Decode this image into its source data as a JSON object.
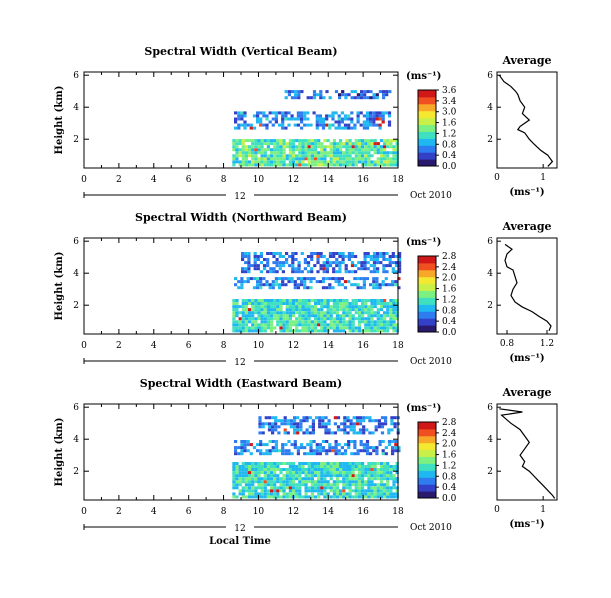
{
  "colors": {
    "colormap": [
      "#2a1a6e",
      "#3340c8",
      "#2d7df0",
      "#20b8f0",
      "#3ee0c0",
      "#7cf080",
      "#c8f048",
      "#f5e830",
      "#f8a828",
      "#f05020",
      "#d01818"
    ],
    "axis": "#000000",
    "background": "#ffffff"
  },
  "shared": {
    "date_label": "Oct 2010",
    "day_label": "12",
    "xlabel": "Local Time",
    "units_label": "(ms⁻¹)",
    "avg_title": "Average",
    "avg_xlabel": "(ms⁻¹)",
    "ylabel": "Height (km)"
  },
  "chart_data": [
    {
      "type": "heatmap",
      "title": "Spectral Width (Vertical Beam)",
      "xlabel": "",
      "ylabel": "Height (km)",
      "x_ticks": [
        "0",
        "2",
        "4",
        "6",
        "8",
        "10",
        "12",
        "14",
        "16",
        "18"
      ],
      "y_ticks": [
        "2",
        "4",
        "6"
      ],
      "xlim": [
        0,
        18
      ],
      "ylim": [
        0.2,
        6.2
      ],
      "data_start_hour": 8.5,
      "colorbar": {
        "label": "(ms⁻¹)",
        "ticks": [
          "3.6",
          "3.4",
          "3.0",
          "1.6",
          "1.2",
          "0.8",
          "0.4",
          "0.0"
        ],
        "range": [
          0,
          3.6
        ]
      },
      "layers": [
        {
          "height_km": [
            0.3,
            1.9
          ],
          "hours": [
            8.5,
            18
          ],
          "level": 0.45
        },
        {
          "height_km": [
            2.6,
            3.6
          ],
          "hours": [
            8.6,
            17.5
          ],
          "level": 0.25
        },
        {
          "height_km": [
            4.5,
            4.9
          ],
          "hours": [
            11.5,
            17.5
          ],
          "level": 0.2
        }
      ],
      "average": {
        "title": "Average",
        "xlabel": "(ms⁻¹)",
        "x_ticks": [
          "0",
          "1"
        ],
        "xlim": [
          0,
          1.3
        ],
        "y_ticks": [
          "2",
          "4",
          "6"
        ],
        "ylim": [
          0.2,
          6.2
        ],
        "x": [
          0.05,
          0.15,
          0.3,
          0.4,
          0.45,
          0.5,
          0.6,
          0.55,
          0.7,
          0.6,
          0.5,
          0.45,
          0.6,
          0.7,
          0.8,
          0.95,
          1.1,
          1.2,
          1.1
        ],
        "y": [
          6.0,
          5.6,
          5.3,
          5.0,
          4.8,
          4.4,
          4.0,
          3.6,
          3.2,
          3.0,
          2.8,
          2.6,
          2.4,
          2.0,
          1.7,
          1.3,
          1.0,
          0.6,
          0.3
        ]
      }
    },
    {
      "type": "heatmap",
      "title": "Spectral Width (Northward Beam)",
      "xlabel": "",
      "ylabel": "Height (km)",
      "x_ticks": [
        "0",
        "2",
        "4",
        "6",
        "8",
        "10",
        "12",
        "14",
        "16",
        "18"
      ],
      "y_ticks": [
        "2",
        "4",
        "6"
      ],
      "xlim": [
        0,
        18
      ],
      "ylim": [
        0.2,
        6.2
      ],
      "data_start_hour": 8.5,
      "colorbar": {
        "label": "(ms⁻¹)",
        "ticks": [
          "2.8",
          "2.4",
          "2.0",
          "1.6",
          "1.2",
          "0.8",
          "0.4",
          "0.0"
        ],
        "range": [
          0,
          2.8
        ]
      },
      "layers": [
        {
          "height_km": [
            0.3,
            2.2
          ],
          "hours": [
            8.5,
            18
          ],
          "level": 0.4
        },
        {
          "height_km": [
            3.0,
            3.6
          ],
          "hours": [
            8.6,
            18
          ],
          "level": 0.25
        },
        {
          "height_km": [
            4.0,
            5.3
          ],
          "hours": [
            9.0,
            18
          ],
          "level": 0.22
        }
      ],
      "average": {
        "title": "Average",
        "xlabel": "(ms⁻¹)",
        "x_ticks": [
          "0.8",
          "1.2"
        ],
        "xlim": [
          0.7,
          1.3
        ],
        "y_ticks": [
          "2",
          "4",
          "6"
        ],
        "ylim": [
          0.2,
          6.2
        ],
        "x": [
          0.78,
          0.85,
          0.8,
          0.78,
          0.8,
          0.86,
          0.88,
          0.9,
          0.86,
          0.84,
          0.88,
          0.95,
          1.05,
          1.12,
          1.2,
          1.24,
          1.22
        ],
        "y": [
          5.8,
          5.5,
          5.2,
          4.8,
          4.4,
          4.2,
          3.8,
          3.4,
          3.0,
          2.6,
          2.2,
          1.9,
          1.6,
          1.3,
          1.0,
          0.7,
          0.4
        ]
      }
    },
    {
      "type": "heatmap",
      "title": "Spectral Width (Eastward Beam)",
      "xlabel": "Local Time",
      "ylabel": "Height (km)",
      "x_ticks": [
        "0",
        "2",
        "4",
        "6",
        "8",
        "10",
        "12",
        "14",
        "16",
        "18"
      ],
      "y_ticks": [
        "2",
        "4",
        "6"
      ],
      "xlim": [
        0,
        18
      ],
      "ylim": [
        0.2,
        6.2
      ],
      "data_start_hour": 8.5,
      "colorbar": {
        "label": "(ms⁻¹)",
        "ticks": [
          "2.8",
          "2.4",
          "2.0",
          "1.6",
          "1.2",
          "0.8",
          "0.4",
          "0.0"
        ],
        "range": [
          0,
          2.8
        ]
      },
      "layers": [
        {
          "height_km": [
            0.3,
            2.4
          ],
          "hours": [
            8.5,
            18
          ],
          "level": 0.4
        },
        {
          "height_km": [
            3.0,
            3.9
          ],
          "hours": [
            8.6,
            18
          ],
          "level": 0.25
        },
        {
          "height_km": [
            4.3,
            5.3
          ],
          "hours": [
            10.0,
            18
          ],
          "level": 0.22
        }
      ],
      "average": {
        "title": "Average",
        "xlabel": "(ms⁻¹)",
        "x_ticks": [
          "0",
          "1"
        ],
        "xlim": [
          0,
          1.3
        ],
        "y_ticks": [
          "2",
          "4",
          "6"
        ],
        "ylim": [
          0.2,
          6.2
        ],
        "x": [
          0.05,
          0.55,
          0.1,
          0.3,
          0.5,
          0.6,
          0.7,
          0.6,
          0.5,
          0.6,
          0.55,
          0.7,
          0.8,
          0.9,
          1.0,
          1.1,
          1.2,
          1.25
        ],
        "y": [
          5.9,
          5.7,
          5.5,
          5.0,
          4.6,
          4.2,
          3.8,
          3.4,
          3.0,
          2.6,
          2.3,
          2.0,
          1.7,
          1.4,
          1.1,
          0.8,
          0.5,
          0.3
        ]
      }
    }
  ]
}
